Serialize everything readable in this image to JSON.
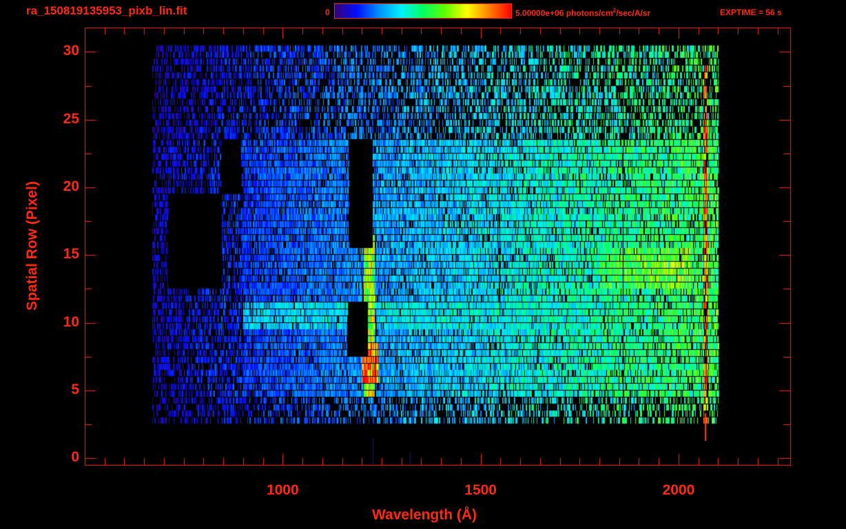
{
  "header": {
    "title": "ra_150819135953_pixb_lin.fit",
    "colorbar_min": "0",
    "colorbar_max_prefix": "5.00000e+06 photons/cm",
    "colorbar_max_sup": "2",
    "colorbar_max_suffix": "/sec/A/sr",
    "exptime": "EXPTIME = 56 s"
  },
  "chart_data": {
    "type": "heatmap",
    "title": "ra_150819135953_pixb_lin.fit",
    "xlabel": "Wavelength (Å)",
    "ylabel": "Spatial Row (Pixel)",
    "xlim": [
      500,
      2282
    ],
    "ylim": [
      -0.5,
      31.8
    ],
    "x_ticks": [
      {
        "value": 1000,
        "label": "1000"
      },
      {
        "value": 1500,
        "label": "1500"
      },
      {
        "value": 2000,
        "label": "2000"
      }
    ],
    "x_minor_step": 50,
    "y_ticks": [
      {
        "value": 0,
        "label": "0"
      },
      {
        "value": 5,
        "label": "5"
      },
      {
        "value": 10,
        "label": "10"
      },
      {
        "value": 15,
        "label": "15"
      },
      {
        "value": 20,
        "label": "20"
      },
      {
        "value": 25,
        "label": "25"
      },
      {
        "value": 30,
        "label": "30"
      }
    ],
    "y_minor_step": 2.5,
    "colorbar": {
      "min": 0,
      "max": 5000000,
      "units": "photons/cm^2/sec/A/sr",
      "stops": [
        "#000000",
        "#3a0070",
        "#0010ff",
        "#0090ff",
        "#00f0ff",
        "#00ff60",
        "#60ff00",
        "#ffff00",
        "#ff8000",
        "#ff0000"
      ]
    },
    "detector_extent": {
      "wavelength": [
        670,
        2100
      ],
      "rows": [
        3,
        30
      ]
    },
    "features": [
      {
        "name": "edge rows",
        "rows": [
          24,
          30
        ],
        "wavelength": [
          670,
          2100
        ],
        "fill": 0.4,
        "level_start": 0.18,
        "level_end": 0.6
      },
      {
        "name": "edge rows low",
        "rows": [
          3,
          4
        ],
        "wavelength": [
          670,
          2100
        ],
        "fill": 0.35,
        "level_start": 0.18,
        "level_end": 0.6
      },
      {
        "name": "core rows",
        "rows": [
          5,
          23
        ],
        "wavelength": [
          670,
          2100
        ],
        "fill": 0.8,
        "level_start": 0.2,
        "level_end": 0.62
      },
      {
        "name": "bright row band",
        "rows": [
          10,
          11
        ],
        "wavelength": [
          900,
          1800
        ],
        "fill": 0.9,
        "level_start": 0.42,
        "level_end": 0.5
      },
      {
        "name": "bright long-wave band",
        "rows": [
          13,
          15
        ],
        "wavelength": [
          1800,
          2030
        ],
        "fill": 0.95,
        "level_start": 0.6,
        "level_end": 0.7
      },
      {
        "name": "Lyman alpha",
        "rows": [
          5,
          16
        ],
        "wavelength": [
          1205,
          1232
        ],
        "fill": 1.0,
        "level_start": 0.75,
        "level_end": 0.75
      },
      {
        "name": "Lyman alpha peak",
        "rows": [
          6,
          8
        ],
        "wavelength": [
          1200,
          1240
        ],
        "fill": 1.0,
        "level_start": 0.95,
        "level_end": 0.95
      },
      {
        "name": "edge line",
        "rows": [
          3,
          29
        ],
        "wavelength": [
          2062,
          2072
        ],
        "fill": 0.65,
        "level_start": 0.95,
        "level_end": 0.95
      },
      {
        "name": "masked",
        "rows": [
          16,
          23
        ],
        "wavelength": [
          1166,
          1228
        ],
        "fill": 0,
        "level_start": 0,
        "level_end": 0
      },
      {
        "name": "masked",
        "rows": [
          8,
          11
        ],
        "wavelength": [
          1162,
          1215
        ],
        "fill": 0,
        "level_start": 0,
        "level_end": 0
      },
      {
        "name": "masked",
        "rows": [
          13,
          19
        ],
        "wavelength": [
          710,
          845
        ],
        "fill": 0,
        "level_start": 0,
        "level_end": 0
      },
      {
        "name": "masked",
        "rows": [
          20,
          23
        ],
        "wavelength": [
          845,
          895
        ],
        "fill": 0,
        "level_start": 0,
        "level_end": 0
      }
    ]
  }
}
